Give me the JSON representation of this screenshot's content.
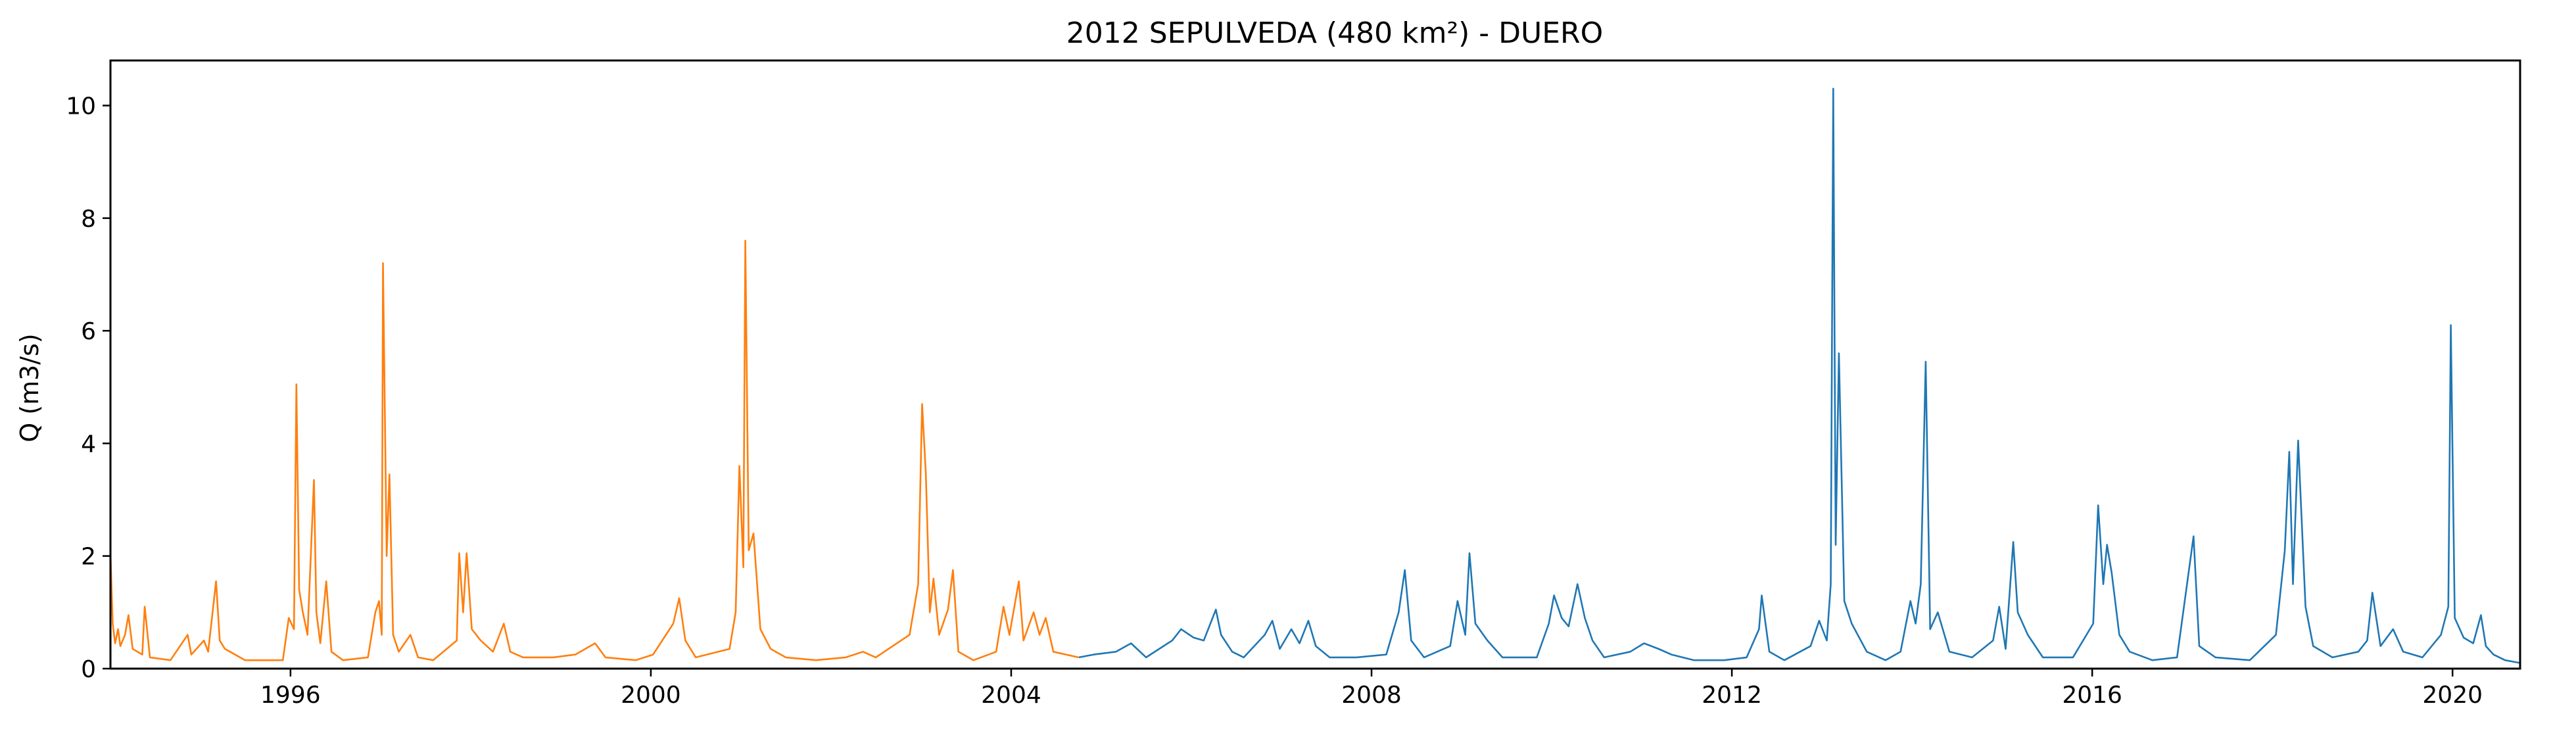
{
  "chart_data": {
    "type": "line",
    "title": "2012 SEPULVEDA (480 km²) - DUERO",
    "xlabel": "",
    "ylabel": "Q (m3/s)",
    "xlim": [
      "1994-01-01",
      "2020-10-01"
    ],
    "ylim": [
      0,
      10.8
    ],
    "x_ticks": [
      "1996",
      "2000",
      "2004",
      "2008",
      "2012",
      "2016",
      "2020"
    ],
    "y_ticks": [
      0,
      2,
      4,
      6,
      8,
      10
    ],
    "grid": false,
    "legend": "none",
    "series": [
      {
        "color": "#ff7f0e",
        "points": [
          [
            "1994-01-01",
            2.05
          ],
          [
            "1994-01-10",
            0.8
          ],
          [
            "1994-01-20",
            0.45
          ],
          [
            "1994-02-01",
            0.7
          ],
          [
            "1994-02-10",
            0.4
          ],
          [
            "1994-03-01",
            0.6
          ],
          [
            "1994-03-15",
            0.95
          ],
          [
            "1994-04-01",
            0.35
          ],
          [
            "1994-05-10",
            0.25
          ],
          [
            "1994-05-20",
            1.1
          ],
          [
            "1994-06-10",
            0.2
          ],
          [
            "1994-09-01",
            0.15
          ],
          [
            "1994-11-10",
            0.6
          ],
          [
            "1994-11-25",
            0.25
          ],
          [
            "1995-01-15",
            0.5
          ],
          [
            "1995-02-01",
            0.3
          ],
          [
            "1995-03-05",
            1.55
          ],
          [
            "1995-03-20",
            0.5
          ],
          [
            "1995-04-10",
            0.35
          ],
          [
            "1995-05-01",
            0.3
          ],
          [
            "1995-07-01",
            0.15
          ],
          [
            "1995-12-01",
            0.15
          ],
          [
            "1995-12-25",
            0.9
          ],
          [
            "1996-01-15",
            0.7
          ],
          [
            "1996-01-25",
            5.05
          ],
          [
            "1996-02-05",
            1.4
          ],
          [
            "1996-02-20",
            1.0
          ],
          [
            "1996-03-10",
            0.6
          ],
          [
            "1996-04-05",
            3.35
          ],
          [
            "1996-04-15",
            1.0
          ],
          [
            "1996-05-01",
            0.45
          ],
          [
            "1996-05-25",
            1.55
          ],
          [
            "1996-06-15",
            0.3
          ],
          [
            "1996-08-01",
            0.15
          ],
          [
            "1996-11-10",
            0.2
          ],
          [
            "1996-12-10",
            1.0
          ],
          [
            "1996-12-25",
            1.2
          ],
          [
            "1997-01-05",
            0.6
          ],
          [
            "1997-01-10",
            7.2
          ],
          [
            "1997-01-25",
            2.0
          ],
          [
            "1997-02-05",
            3.45
          ],
          [
            "1997-02-20",
            0.6
          ],
          [
            "1997-03-15",
            0.3
          ],
          [
            "1997-05-01",
            0.6
          ],
          [
            "1997-06-01",
            0.2
          ],
          [
            "1997-08-01",
            0.15
          ],
          [
            "1997-11-05",
            0.5
          ],
          [
            "1997-11-15",
            2.05
          ],
          [
            "1997-12-01",
            1.0
          ],
          [
            "1997-12-15",
            2.05
          ],
          [
            "1998-01-05",
            0.7
          ],
          [
            "1998-02-10",
            0.5
          ],
          [
            "1998-04-01",
            0.3
          ],
          [
            "1998-05-15",
            0.8
          ],
          [
            "1998-06-10",
            0.3
          ],
          [
            "1998-08-01",
            0.2
          ],
          [
            "1998-12-01",
            0.2
          ],
          [
            "1999-03-01",
            0.25
          ],
          [
            "1999-05-20",
            0.45
          ],
          [
            "1999-07-01",
            0.2
          ],
          [
            "1999-11-01",
            0.15
          ],
          [
            "2000-01-10",
            0.25
          ],
          [
            "2000-04-01",
            0.8
          ],
          [
            "2000-04-25",
            1.25
          ],
          [
            "2000-05-20",
            0.5
          ],
          [
            "2000-07-01",
            0.2
          ],
          [
            "2000-11-15",
            0.35
          ],
          [
            "2000-12-10",
            1.0
          ],
          [
            "2000-12-25",
            3.6
          ],
          [
            "2001-01-10",
            1.8
          ],
          [
            "2001-01-18",
            7.6
          ],
          [
            "2001-02-01",
            2.1
          ],
          [
            "2001-02-20",
            2.4
          ],
          [
            "2001-03-20",
            0.7
          ],
          [
            "2001-05-01",
            0.35
          ],
          [
            "2001-07-01",
            0.2
          ],
          [
            "2001-11-01",
            0.15
          ],
          [
            "2002-03-01",
            0.2
          ],
          [
            "2002-05-10",
            0.3
          ],
          [
            "2002-07-01",
            0.2
          ],
          [
            "2002-11-15",
            0.6
          ],
          [
            "2002-12-20",
            1.5
          ],
          [
            "2003-01-05",
            4.7
          ],
          [
            "2003-01-20",
            3.45
          ],
          [
            "2003-02-05",
            1.0
          ],
          [
            "2003-02-20",
            1.6
          ],
          [
            "2003-03-15",
            0.6
          ],
          [
            "2003-04-20",
            1.05
          ],
          [
            "2003-05-10",
            1.75
          ],
          [
            "2003-06-01",
            0.3
          ],
          [
            "2003-08-01",
            0.15
          ],
          [
            "2003-11-01",
            0.3
          ],
          [
            "2003-12-01",
            1.1
          ],
          [
            "2003-12-25",
            0.6
          ],
          [
            "2004-02-01",
            1.55
          ],
          [
            "2004-02-20",
            0.5
          ],
          [
            "2004-04-01",
            1.0
          ],
          [
            "2004-04-25",
            0.6
          ],
          [
            "2004-05-20",
            0.9
          ],
          [
            "2004-06-20",
            0.3
          ],
          [
            "2004-09-30",
            0.2
          ]
        ]
      },
      {
        "color": "#1f77b4",
        "points": [
          [
            "2004-10-01",
            0.2
          ],
          [
            "2004-12-01",
            0.25
          ],
          [
            "2005-03-01",
            0.3
          ],
          [
            "2005-05-01",
            0.45
          ],
          [
            "2005-07-01",
            0.2
          ],
          [
            "2005-10-15",
            0.5
          ],
          [
            "2005-11-20",
            0.7
          ],
          [
            "2006-01-10",
            0.55
          ],
          [
            "2006-02-20",
            0.5
          ],
          [
            "2006-04-10",
            1.05
          ],
          [
            "2006-05-01",
            0.6
          ],
          [
            "2006-06-15",
            0.3
          ],
          [
            "2006-08-01",
            0.2
          ],
          [
            "2006-10-25",
            0.6
          ],
          [
            "2006-11-25",
            0.85
          ],
          [
            "2006-12-25",
            0.35
          ],
          [
            "2007-02-10",
            0.7
          ],
          [
            "2007-03-15",
            0.45
          ],
          [
            "2007-04-20",
            0.85
          ],
          [
            "2007-05-20",
            0.4
          ],
          [
            "2007-07-15",
            0.2
          ],
          [
            "2007-11-01",
            0.2
          ],
          [
            "2008-03-01",
            0.25
          ],
          [
            "2008-04-20",
            1.0
          ],
          [
            "2008-05-15",
            1.75
          ],
          [
            "2008-06-10",
            0.5
          ],
          [
            "2008-08-01",
            0.2
          ],
          [
            "2008-11-15",
            0.4
          ],
          [
            "2008-12-15",
            1.2
          ],
          [
            "2009-01-15",
            0.6
          ],
          [
            "2009-02-01",
            2.05
          ],
          [
            "2009-02-25",
            0.8
          ],
          [
            "2009-04-15",
            0.5
          ],
          [
            "2009-06-15",
            0.2
          ],
          [
            "2009-11-01",
            0.2
          ],
          [
            "2009-12-20",
            0.8
          ],
          [
            "2010-01-10",
            1.3
          ],
          [
            "2010-02-10",
            0.9
          ],
          [
            "2010-03-10",
            0.75
          ],
          [
            "2010-04-15",
            1.5
          ],
          [
            "2010-05-15",
            0.9
          ],
          [
            "2010-06-15",
            0.5
          ],
          [
            "2010-08-01",
            0.2
          ],
          [
            "2010-11-15",
            0.3
          ],
          [
            "2011-01-10",
            0.45
          ],
          [
            "2011-03-10",
            0.35
          ],
          [
            "2011-05-01",
            0.25
          ],
          [
            "2011-08-01",
            0.15
          ],
          [
            "2011-12-01",
            0.15
          ],
          [
            "2012-03-01",
            0.2
          ],
          [
            "2012-04-20",
            0.7
          ],
          [
            "2012-05-01",
            1.3
          ],
          [
            "2012-06-01",
            0.3
          ],
          [
            "2012-08-01",
            0.15
          ],
          [
            "2012-11-15",
            0.4
          ],
          [
            "2012-12-20",
            0.85
          ],
          [
            "2013-01-20",
            0.5
          ],
          [
            "2013-02-05",
            1.5
          ],
          [
            "2013-02-15",
            10.3
          ],
          [
            "2013-02-25",
            2.2
          ],
          [
            "2013-03-10",
            5.6
          ],
          [
            "2013-04-01",
            1.2
          ],
          [
            "2013-05-01",
            0.8
          ],
          [
            "2013-07-01",
            0.3
          ],
          [
            "2013-09-15",
            0.15
          ],
          [
            "2013-11-15",
            0.3
          ],
          [
            "2013-12-25",
            1.2
          ],
          [
            "2014-01-15",
            0.8
          ],
          [
            "2014-02-05",
            1.5
          ],
          [
            "2014-02-25",
            5.45
          ],
          [
            "2014-03-15",
            0.7
          ],
          [
            "2014-04-15",
            1.0
          ],
          [
            "2014-06-01",
            0.3
          ],
          [
            "2014-09-01",
            0.2
          ],
          [
            "2014-11-25",
            0.5
          ],
          [
            "2014-12-20",
            1.1
          ],
          [
            "2015-01-15",
            0.35
          ],
          [
            "2015-02-15",
            2.25
          ],
          [
            "2015-03-05",
            1.0
          ],
          [
            "2015-04-15",
            0.6
          ],
          [
            "2015-06-15",
            0.2
          ],
          [
            "2015-10-15",
            0.2
          ],
          [
            "2016-01-05",
            0.8
          ],
          [
            "2016-01-25",
            2.9
          ],
          [
            "2016-02-15",
            1.5
          ],
          [
            "2016-03-01",
            2.2
          ],
          [
            "2016-03-20",
            1.7
          ],
          [
            "2016-04-20",
            0.6
          ],
          [
            "2016-06-01",
            0.3
          ],
          [
            "2016-09-01",
            0.15
          ],
          [
            "2016-12-10",
            0.2
          ],
          [
            "2017-02-15",
            2.35
          ],
          [
            "2017-03-10",
            0.4
          ],
          [
            "2017-05-15",
            0.2
          ],
          [
            "2017-10-01",
            0.15
          ],
          [
            "2018-01-15",
            0.6
          ],
          [
            "2018-02-20",
            2.1
          ],
          [
            "2018-03-10",
            3.85
          ],
          [
            "2018-03-25",
            1.5
          ],
          [
            "2018-04-15",
            4.05
          ],
          [
            "2018-05-15",
            1.1
          ],
          [
            "2018-06-15",
            0.4
          ],
          [
            "2018-09-01",
            0.2
          ],
          [
            "2018-12-15",
            0.3
          ],
          [
            "2019-01-20",
            0.5
          ],
          [
            "2019-02-10",
            1.35
          ],
          [
            "2019-03-15",
            0.4
          ],
          [
            "2019-05-05",
            0.7
          ],
          [
            "2019-06-15",
            0.3
          ],
          [
            "2019-09-01",
            0.2
          ],
          [
            "2019-11-15",
            0.6
          ],
          [
            "2019-12-15",
            1.1
          ],
          [
            "2019-12-25",
            6.1
          ],
          [
            "2020-01-10",
            0.9
          ],
          [
            "2020-02-15",
            0.55
          ],
          [
            "2020-03-25",
            0.45
          ],
          [
            "2020-04-25",
            0.95
          ],
          [
            "2020-05-15",
            0.4
          ],
          [
            "2020-06-15",
            0.25
          ],
          [
            "2020-08-01",
            0.15
          ],
          [
            "2020-10-01",
            0.1
          ]
        ]
      }
    ]
  }
}
